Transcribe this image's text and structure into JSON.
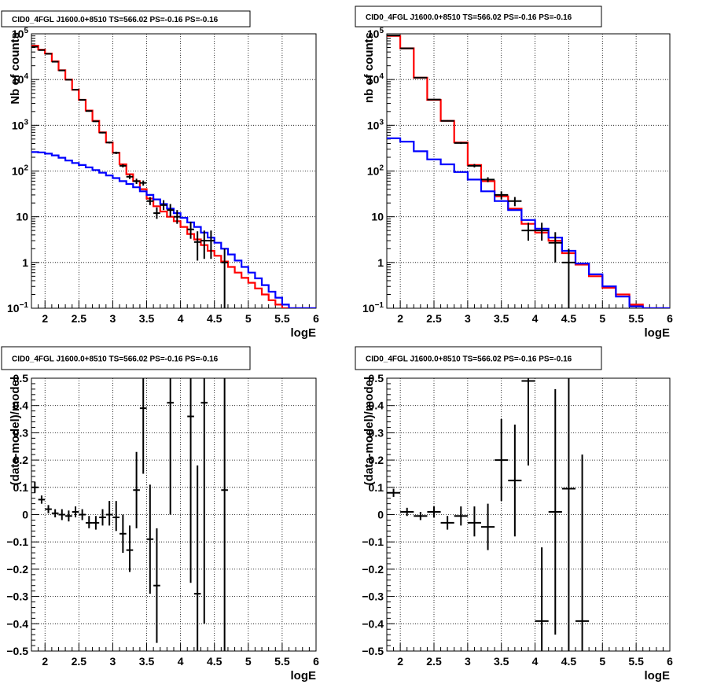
{
  "chart_data": [
    {
      "type": "line",
      "title": "CID0_4FGL J1600.0+8510 TS=566.02 PS=-0.16 PS=-0.16",
      "xlabel": "logE",
      "ylabel": "Nb of counts",
      "xlim": [
        1.8,
        6.0
      ],
      "ylim": [
        0.1,
        100000
      ],
      "y_scale": "log",
      "grid": true,
      "x_ticks": [
        2,
        2.5,
        3,
        3.5,
        4,
        4.5,
        5,
        5.5,
        6
      ],
      "x_tick_labels": [
        "2",
        "2.5",
        "3",
        "3.5",
        "4",
        "4.5",
        "5",
        "5.5",
        "6"
      ],
      "y_ticks": [
        0.1,
        1,
        10,
        100,
        1000,
        10000,
        100000
      ],
      "y_tick_labels": [
        "10^-1",
        "1",
        "10",
        "10^2",
        "10^3",
        "10^4",
        "10^5"
      ],
      "bin_edges": [
        1.8,
        1.9,
        2.0,
        2.1,
        2.2,
        2.3,
        2.4,
        2.5,
        2.6,
        2.7,
        2.8,
        2.9,
        3.0,
        3.1,
        3.2,
        3.3,
        3.4,
        3.5,
        3.6,
        3.7,
        3.8,
        3.9,
        4.0,
        4.1,
        4.2,
        4.3,
        4.4,
        4.5,
        4.6,
        4.7,
        4.8,
        4.9,
        5.0,
        5.1,
        5.2,
        5.3,
        5.4,
        5.5,
        5.6,
        5.7,
        5.8,
        5.9,
        6.0
      ],
      "series": [
        {
          "color": "#ff0000",
          "style": "step",
          "values": [
            55000,
            45000,
            37000,
            25000,
            16000,
            10000,
            6000,
            3600,
            2100,
            1250,
            700,
            420,
            250,
            140,
            85,
            60,
            40,
            25,
            17,
            13,
            10,
            8,
            6,
            4.2,
            3.2,
            2.4,
            1.8,
            1.4,
            1.05,
            0.8,
            0.6,
            0.46,
            0.36,
            0.27,
            0.2,
            0.15,
            0.12,
            0.1,
            0.1,
            0.1,
            0.1,
            0.1
          ]
        },
        {
          "color": "#0000ff",
          "style": "step",
          "values": [
            260,
            255,
            240,
            220,
            195,
            170,
            150,
            135,
            120,
            105,
            92,
            80,
            70,
            60,
            52,
            44,
            36,
            30,
            24,
            19,
            15,
            12,
            9.5,
            7.5,
            6,
            4.5,
            3.5,
            2.7,
            2,
            1.5,
            1.1,
            0.8,
            0.6,
            0.45,
            0.32,
            0.23,
            0.17,
            0.12,
            0.1,
            0.1,
            0.1,
            0.1
          ]
        }
      ],
      "data_points": [
        {
          "x": 1.85,
          "y": 52000,
          "ylo": 51000,
          "yhi": 53000
        },
        {
          "x": 1.95,
          "y": 44000,
          "ylo": 43000,
          "yhi": 45000
        },
        {
          "x": 2.05,
          "y": 36500,
          "ylo": 36000,
          "yhi": 37000
        },
        {
          "x": 2.15,
          "y": 24500,
          "ylo": 24000,
          "yhi": 25000
        },
        {
          "x": 2.25,
          "y": 15800,
          "ylo": 15500,
          "yhi": 16100
        },
        {
          "x": 2.35,
          "y": 9900,
          "ylo": 9700,
          "yhi": 10100
        },
        {
          "x": 2.45,
          "y": 6000,
          "ylo": 5850,
          "yhi": 6150
        },
        {
          "x": 2.55,
          "y": 3600,
          "ylo": 3500,
          "yhi": 3700
        },
        {
          "x": 2.65,
          "y": 2050,
          "ylo": 1980,
          "yhi": 2120
        },
        {
          "x": 2.75,
          "y": 1220,
          "ylo": 1180,
          "yhi": 1260
        },
        {
          "x": 2.85,
          "y": 690,
          "ylo": 665,
          "yhi": 715
        },
        {
          "x": 2.95,
          "y": 420,
          "ylo": 400,
          "yhi": 440
        },
        {
          "x": 3.05,
          "y": 250,
          "ylo": 235,
          "yhi": 265
        },
        {
          "x": 3.15,
          "y": 130,
          "ylo": 120,
          "yhi": 141
        },
        {
          "x": 3.25,
          "y": 75,
          "ylo": 67,
          "yhi": 84
        },
        {
          "x": 3.35,
          "y": 60,
          "ylo": 52,
          "yhi": 68
        },
        {
          "x": 3.45,
          "y": 55,
          "ylo": 48,
          "yhi": 62
        },
        {
          "x": 3.55,
          "y": 22,
          "ylo": 18,
          "yhi": 27
        },
        {
          "x": 3.65,
          "y": 12,
          "ylo": 9,
          "yhi": 16
        },
        {
          "x": 3.75,
          "y": 18,
          "ylo": 14,
          "yhi": 23
        },
        {
          "x": 3.85,
          "y": 14,
          "ylo": 10,
          "yhi": 19
        },
        {
          "x": 3.95,
          "y": 10,
          "ylo": 7,
          "yhi": 14
        },
        {
          "x": 4.15,
          "y": 5.3,
          "ylo": 3.3,
          "yhi": 7.8
        },
        {
          "x": 4.25,
          "y": 2.8,
          "ylo": 1.1,
          "yhi": 4.8
        },
        {
          "x": 4.35,
          "y": 3.0,
          "ylo": 1.2,
          "yhi": 5.0
        },
        {
          "x": 4.45,
          "y": 3.0,
          "ylo": 1.2,
          "yhi": 5.0
        },
        {
          "x": 4.65,
          "y": 1.0,
          "ylo": 0.1,
          "yhi": 2.0
        }
      ]
    },
    {
      "type": "line",
      "title": "CID0_4FGL J1600.0+8510 TS=566.02 PS=-0.16 PS=-0.16",
      "xlabel": "logE",
      "ylabel": "nb of counts",
      "xlim": [
        1.8,
        6.0
      ],
      "ylim": [
        0.1,
        100000
      ],
      "y_scale": "log",
      "grid": true,
      "x_ticks": [
        2,
        2.5,
        3,
        3.5,
        4,
        4.5,
        5,
        5.5,
        6
      ],
      "x_tick_labels": [
        "2",
        "2.5",
        "3",
        "3.5",
        "4",
        "4.5",
        "5",
        "5.5",
        "6"
      ],
      "y_ticks": [
        0.1,
        1,
        10,
        100,
        1000,
        10000,
        100000
      ],
      "y_tick_labels": [
        "10^-1",
        "1",
        "10",
        "10^2",
        "10^3",
        "10^4",
        "10^5"
      ],
      "bin_edges": [
        1.8,
        2.0,
        2.2,
        2.4,
        2.6,
        2.8,
        3.0,
        3.2,
        3.4,
        3.6,
        3.8,
        4.0,
        4.2,
        4.4,
        4.6,
        4.8,
        5.0,
        5.2,
        5.4,
        5.6,
        5.8,
        6.0
      ],
      "series": [
        {
          "color": "#ff0000",
          "style": "step",
          "values": [
            90000,
            48000,
            11000,
            3600,
            1250,
            420,
            135,
            60,
            28,
            15,
            7,
            4.5,
            3,
            1.6,
            0.9,
            0.5,
            0.28,
            0.2,
            0.12,
            0.1,
            0.1
          ]
        },
        {
          "color": "#0000ff",
          "style": "step",
          "values": [
            520,
            440,
            270,
            180,
            140,
            95,
            65,
            36,
            22,
            14,
            8.5,
            5.5,
            3.5,
            1.8,
            0.95,
            0.55,
            0.3,
            0.18,
            0.11,
            0.1,
            0.1
          ]
        }
      ],
      "data_points": [
        {
          "x": 1.9,
          "y": 92000,
          "ylo": 91000,
          "yhi": 93000
        },
        {
          "x": 2.1,
          "y": 48000,
          "ylo": 47500,
          "yhi": 48500
        },
        {
          "x": 2.3,
          "y": 11000,
          "ylo": 10800,
          "yhi": 11200
        },
        {
          "x": 2.5,
          "y": 3650,
          "ylo": 3550,
          "yhi": 3750
        },
        {
          "x": 2.7,
          "y": 1250,
          "ylo": 1210,
          "yhi": 1290
        },
        {
          "x": 2.9,
          "y": 410,
          "ylo": 390,
          "yhi": 430
        },
        {
          "x": 3.1,
          "y": 130,
          "ylo": 120,
          "yhi": 142
        },
        {
          "x": 3.3,
          "y": 65,
          "ylo": 57,
          "yhi": 73
        },
        {
          "x": 3.5,
          "y": 30,
          "ylo": 24,
          "yhi": 36
        },
        {
          "x": 3.7,
          "y": 22,
          "ylo": 17,
          "yhi": 27
        },
        {
          "x": 3.9,
          "y": 5,
          "ylo": 3,
          "yhi": 7.4
        },
        {
          "x": 4.1,
          "y": 5,
          "ylo": 3,
          "yhi": 7.4
        },
        {
          "x": 4.3,
          "y": 2.7,
          "ylo": 1.0,
          "yhi": 4.6
        },
        {
          "x": 4.5,
          "y": 1.0,
          "ylo": 0.1,
          "yhi": 2.0
        }
      ]
    },
    {
      "type": "scatter",
      "title": "CID0_4FGL J1600.0+8510 TS=566.02 PS=-0.16 PS=-0.16",
      "xlabel": "logE",
      "ylabel": "(data-model)/model",
      "xlim": [
        1.8,
        6.0
      ],
      "ylim": [
        -0.5,
        0.5
      ],
      "grid": true,
      "x_ticks": [
        2,
        2.5,
        3,
        3.5,
        4,
        4.5,
        5,
        5.5,
        6
      ],
      "x_tick_labels": [
        "2",
        "2.5",
        "3",
        "3.5",
        "4",
        "4.5",
        "5",
        "5.5",
        "6"
      ],
      "y_ticks": [
        -0.5,
        -0.4,
        -0.3,
        -0.2,
        -0.1,
        0,
        0.1,
        0.2,
        0.3,
        0.4,
        0.5
      ],
      "y_tick_labels": [
        "−0.5",
        "−0.4",
        "−0.3",
        "−0.2",
        "−0.1",
        "0",
        "0.1",
        "0.2",
        "0.3",
        "0.4",
        "0.5"
      ],
      "x_half_width": 0.05,
      "data_points": [
        {
          "x": 1.85,
          "y": 0.1,
          "ylo": 0.08,
          "yhi": 0.12
        },
        {
          "x": 1.95,
          "y": 0.055,
          "ylo": 0.04,
          "yhi": 0.07
        },
        {
          "x": 2.05,
          "y": 0.02,
          "ylo": 0.005,
          "yhi": 0.035
        },
        {
          "x": 2.15,
          "y": 0.005,
          "ylo": -0.01,
          "yhi": 0.02
        },
        {
          "x": 2.25,
          "y": 0.0,
          "ylo": -0.02,
          "yhi": 0.02
        },
        {
          "x": 2.35,
          "y": -0.005,
          "ylo": -0.025,
          "yhi": 0.015
        },
        {
          "x": 2.45,
          "y": 0.01,
          "ylo": -0.01,
          "yhi": 0.03
        },
        {
          "x": 2.55,
          "y": 0.0,
          "ylo": -0.02,
          "yhi": 0.02
        },
        {
          "x": 2.65,
          "y": -0.03,
          "ylo": -0.05,
          "yhi": -0.005
        },
        {
          "x": 2.75,
          "y": -0.03,
          "ylo": -0.055,
          "yhi": -0.005
        },
        {
          "x": 2.85,
          "y": -0.01,
          "ylo": -0.04,
          "yhi": 0.02
        },
        {
          "x": 2.95,
          "y": 0.0,
          "ylo": -0.04,
          "yhi": 0.05
        },
        {
          "x": 3.05,
          "y": -0.01,
          "ylo": -0.06,
          "yhi": 0.05
        },
        {
          "x": 3.15,
          "y": -0.07,
          "ylo": -0.14,
          "yhi": 0.0
        },
        {
          "x": 3.25,
          "y": -0.13,
          "ylo": -0.21,
          "yhi": -0.04
        },
        {
          "x": 3.35,
          "y": 0.09,
          "ylo": -0.05,
          "yhi": 0.23
        },
        {
          "x": 3.45,
          "y": 0.39,
          "ylo": 0.15,
          "yhi": 0.5
        },
        {
          "x": 3.55,
          "y": -0.09,
          "ylo": -0.29,
          "yhi": 0.11
        },
        {
          "x": 3.65,
          "y": -0.26,
          "ylo": -0.47,
          "yhi": -0.05
        },
        {
          "x": 3.85,
          "y": 0.41,
          "ylo": 0.0,
          "yhi": 0.5
        },
        {
          "x": 4.15,
          "y": 0.36,
          "ylo": -0.25,
          "yhi": 0.5
        },
        {
          "x": 4.25,
          "y": -0.29,
          "ylo": -0.5,
          "yhi": 0.18
        },
        {
          "x": 4.35,
          "y": 0.41,
          "ylo": -0.4,
          "yhi": 0.5
        },
        {
          "x": 4.65,
          "y": 0.09,
          "ylo": -0.5,
          "yhi": 0.5
        }
      ]
    },
    {
      "type": "scatter",
      "title": "CID0_4FGL J1600.0+8510 TS=566.02 PS=-0.16 PS=-0.16",
      "xlabel": "logE",
      "ylabel": "(data-model)/model",
      "xlim": [
        1.8,
        6.0
      ],
      "ylim": [
        -0.5,
        0.5
      ],
      "grid": true,
      "x_ticks": [
        2,
        2.5,
        3,
        3.5,
        4,
        4.5,
        5,
        5.5,
        6
      ],
      "x_tick_labels": [
        "2",
        "2.5",
        "3",
        "3.5",
        "4",
        "4.5",
        "5",
        "5.5",
        "6"
      ],
      "y_ticks": [
        -0.5,
        -0.4,
        -0.3,
        -0.2,
        -0.1,
        0,
        0.1,
        0.2,
        0.3,
        0.4,
        0.5
      ],
      "y_tick_labels": [
        "−0.5",
        "−0.4",
        "−0.3",
        "−0.2",
        "−0.1",
        "0",
        "0.1",
        "0.2",
        "0.3",
        "0.4",
        "0.5"
      ],
      "x_half_width": 0.1,
      "data_points": [
        {
          "x": 1.9,
          "y": 0.08,
          "ylo": 0.065,
          "yhi": 0.095
        },
        {
          "x": 2.1,
          "y": 0.01,
          "ylo": -0.005,
          "yhi": 0.025
        },
        {
          "x": 2.3,
          "y": -0.005,
          "ylo": -0.02,
          "yhi": 0.01
        },
        {
          "x": 2.5,
          "y": 0.01,
          "ylo": -0.01,
          "yhi": 0.03
        },
        {
          "x": 2.7,
          "y": -0.03,
          "ylo": -0.055,
          "yhi": -0.005
        },
        {
          "x": 2.9,
          "y": -0.005,
          "ylo": -0.04,
          "yhi": 0.03
        },
        {
          "x": 3.1,
          "y": -0.03,
          "ylo": -0.08,
          "yhi": 0.03
        },
        {
          "x": 3.3,
          "y": -0.045,
          "ylo": -0.13,
          "yhi": 0.04
        },
        {
          "x": 3.5,
          "y": 0.2,
          "ylo": 0.05,
          "yhi": 0.35
        },
        {
          "x": 3.7,
          "y": 0.125,
          "ylo": -0.08,
          "yhi": 0.33
        },
        {
          "x": 3.9,
          "y": 0.49,
          "ylo": 0.18,
          "yhi": 0.5
        },
        {
          "x": 4.1,
          "y": -0.39,
          "ylo": -0.5,
          "yhi": -0.12
        },
        {
          "x": 4.3,
          "y": 0.01,
          "ylo": -0.44,
          "yhi": 0.46
        },
        {
          "x": 4.5,
          "y": 0.095,
          "ylo": -0.5,
          "yhi": 0.5
        },
        {
          "x": 4.7,
          "y": -0.39,
          "ylo": -0.5,
          "yhi": 0.22
        }
      ]
    }
  ]
}
